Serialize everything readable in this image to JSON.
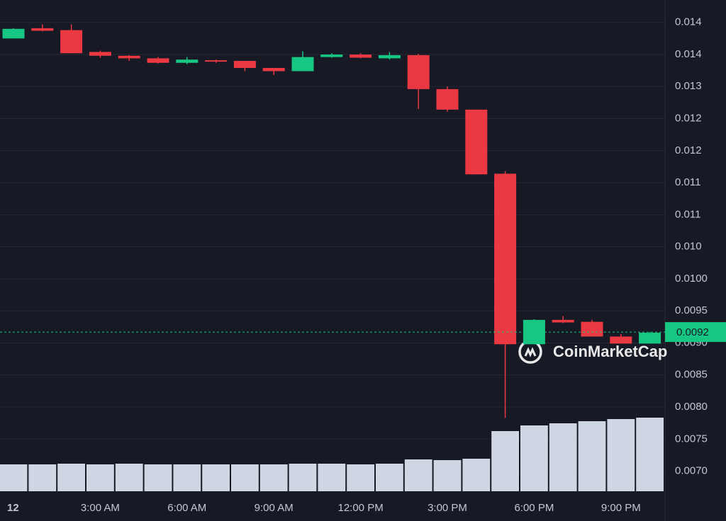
{
  "chart_data": {
    "type": "candlestick",
    "categories": [
      "12",
      null,
      null,
      "3:00 AM",
      null,
      null,
      "6:00 AM",
      null,
      null,
      "9:00 AM",
      null,
      null,
      "12:00 PM",
      null,
      null,
      "3:00 PM",
      null,
      null,
      "6:00 PM",
      null,
      null,
      "9:00 PM",
      null
    ],
    "open": [
      0.01375,
      0.01391,
      0.01388,
      0.01354,
      0.01348,
      0.01344,
      0.01337,
      0.01341,
      0.0134,
      0.01329,
      0.01324,
      0.01346,
      0.0135,
      0.01344,
      0.01349,
      0.01296,
      0.01264,
      0.01164,
      0.00898,
      0.00936,
      0.00933,
      0.0091,
      0.00899
    ],
    "high": [
      0.01391,
      0.01397,
      0.01397,
      0.01356,
      0.01349,
      0.01346,
      0.01346,
      0.01342,
      0.0134,
      0.01329,
      0.01355,
      0.01352,
      0.01352,
      0.01354,
      0.01351,
      0.013,
      0.01264,
      0.01168,
      0.00937,
      0.00942,
      0.00936,
      0.00914,
      0.00917
    ],
    "low": [
      0.01375,
      0.01386,
      0.01352,
      0.01345,
      0.0134,
      0.01336,
      0.01335,
      0.01337,
      0.01324,
      0.01318,
      0.01324,
      0.01345,
      0.01344,
      0.01342,
      0.01265,
      0.01261,
      0.01163,
      0.00783,
      0.00898,
      0.00931,
      0.0091,
      0.00899,
      0.00899
    ],
    "close": [
      0.0139,
      0.01387,
      0.01352,
      0.01348,
      0.01344,
      0.01337,
      0.01342,
      0.01339,
      0.01329,
      0.01324,
      0.01346,
      0.0135,
      0.01345,
      0.01349,
      0.01296,
      0.01264,
      0.01163,
      0.00898,
      0.00936,
      0.00932,
      0.0091,
      0.00899,
      0.00916
    ],
    "volume": [
      38,
      38,
      39,
      38,
      39,
      38,
      38,
      38,
      38,
      38,
      39,
      39,
      38,
      39,
      45,
      44,
      46,
      85,
      93,
      96,
      99,
      102,
      104
    ],
    "ylim": [
      0.00662,
      0.01435
    ],
    "yticks": [
      {
        "value": 0.007,
        "label": "0.0070"
      },
      0.0075,
      {
        "value": 0.008,
        "label": "0.0080"
      },
      0.0085,
      {
        "value": 0.009,
        "label": "0.0090"
      },
      0.0095,
      {
        "value": 0.01,
        "label": "0.0100"
      },
      {
        "value": 0.0105,
        "label": "0.010"
      },
      {
        "value": 0.011,
        "label": "0.011"
      },
      {
        "value": 0.0115,
        "label": "0.011"
      },
      {
        "value": 0.012,
        "label": "0.012"
      },
      {
        "value": 0.0125,
        "label": "0.012"
      },
      {
        "value": 0.013,
        "label": "0.013"
      },
      {
        "value": 0.0135,
        "label": "0.014"
      },
      {
        "value": 0.014,
        "label": "0.014"
      }
    ],
    "grid": true,
    "current_price": 0.00917,
    "current_price_label": "0.0092",
    "watermark": "CoinMarketCap",
    "up_color": "#16c784",
    "down_color": "#ea3943",
    "volume_color": "#cfd6e4"
  }
}
